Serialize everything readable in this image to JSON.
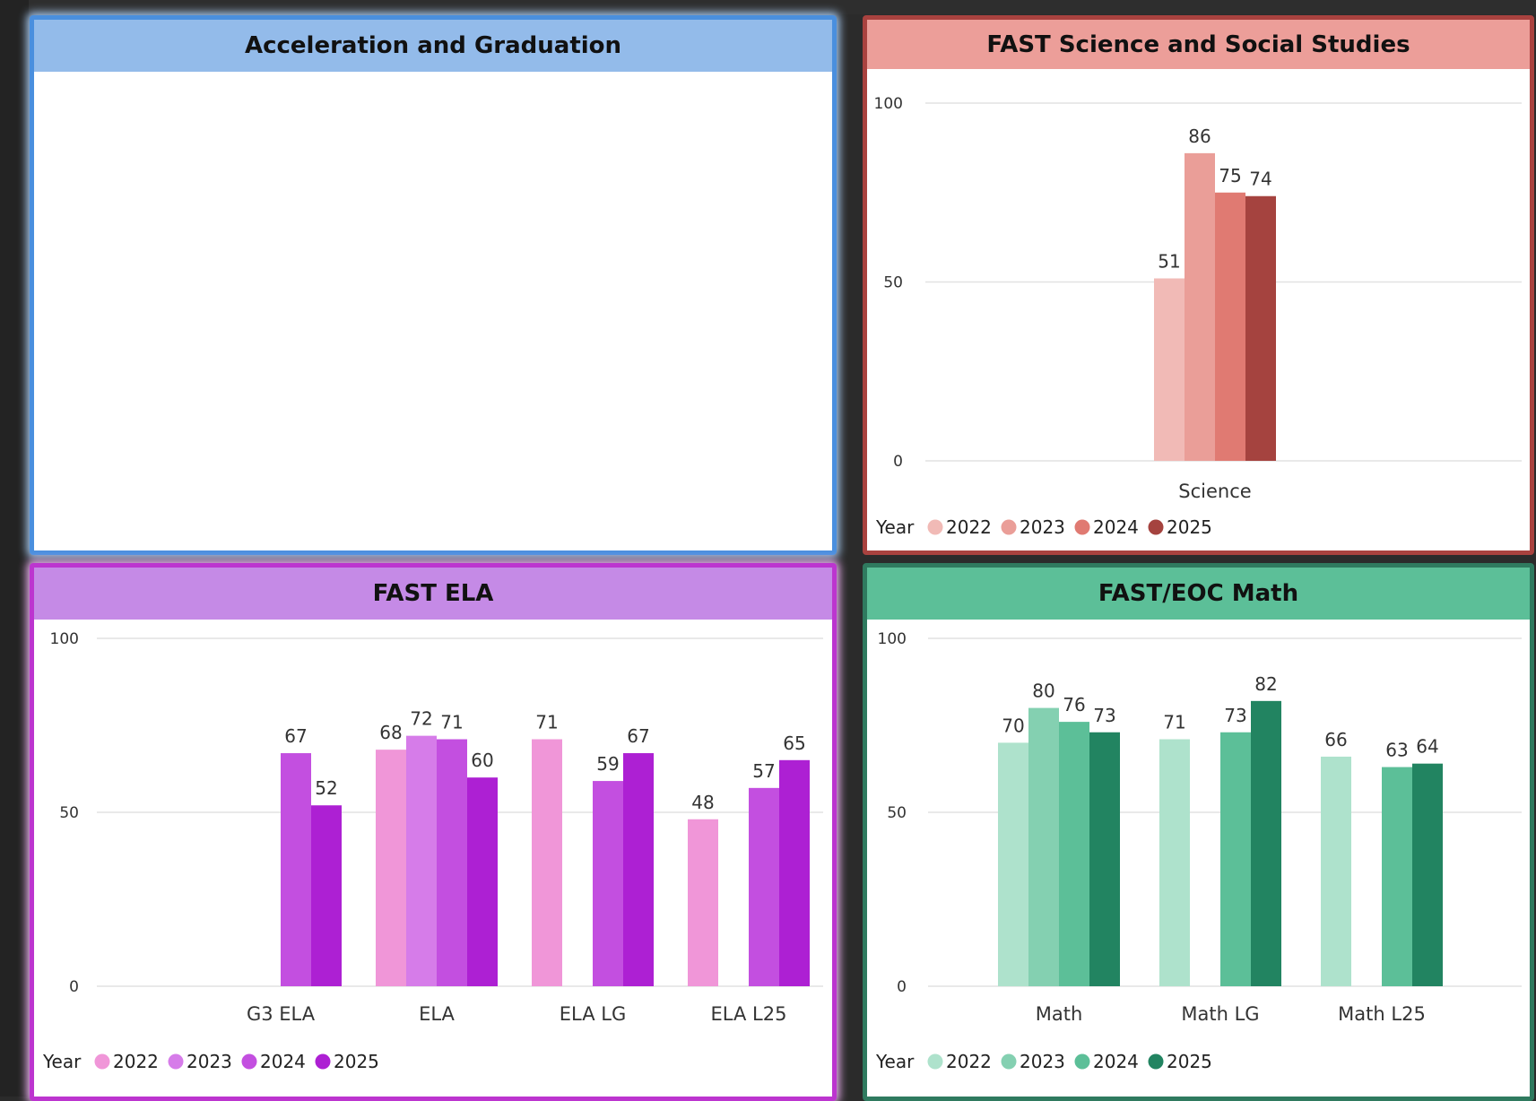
{
  "panels": {
    "accel": {
      "title": "Acceleration and Graduation"
    },
    "science": {
      "title": "FAST Science and Social Studies"
    },
    "ela": {
      "title": "FAST ELA"
    },
    "math": {
      "title": "FAST/EOC Math"
    }
  },
  "chart_data": [
    {
      "id": "science",
      "type": "bar",
      "categories": [
        "Science"
      ],
      "legend_title": "Year",
      "legend_position": "bottom-left",
      "ylim": [
        0,
        100
      ],
      "yticks": [
        0,
        50,
        100
      ],
      "grid": true,
      "series": [
        {
          "name": "2022",
          "color": "#f1bab6",
          "values": [
            51
          ]
        },
        {
          "name": "2023",
          "color": "#ea9e98",
          "values": [
            86
          ]
        },
        {
          "name": "2024",
          "color": "#e07a72",
          "values": [
            75
          ]
        },
        {
          "name": "2025",
          "color": "#a5433f",
          "values": [
            74
          ]
        }
      ]
    },
    {
      "id": "ela",
      "type": "bar",
      "categories": [
        "G3 ELA",
        "ELA",
        "ELA LG",
        "ELA L25"
      ],
      "legend_title": "Year",
      "legend_position": "bottom-left",
      "ylim": [
        0,
        100
      ],
      "yticks": [
        0,
        50,
        100
      ],
      "grid": true,
      "series": [
        {
          "name": "2022",
          "color": "#f096d8",
          "values": [
            null,
            68,
            71,
            48
          ]
        },
        {
          "name": "2023",
          "color": "#d67ce9",
          "values": [
            null,
            72,
            null,
            null
          ]
        },
        {
          "name": "2024",
          "color": "#c34fe0",
          "values": [
            67,
            71,
            59,
            57
          ]
        },
        {
          "name": "2025",
          "color": "#ad20d3",
          "values": [
            52,
            60,
            67,
            65
          ]
        }
      ]
    },
    {
      "id": "math",
      "type": "bar",
      "categories": [
        "Math",
        "Math LG",
        "Math L25"
      ],
      "legend_title": "Year",
      "legend_position": "bottom-left",
      "ylim": [
        0,
        100
      ],
      "yticks": [
        0,
        50,
        100
      ],
      "grid": true,
      "series": [
        {
          "name": "2022",
          "color": "#aee2cc",
          "values": [
            70,
            71,
            66
          ]
        },
        {
          "name": "2023",
          "color": "#84d0b1",
          "values": [
            80,
            null,
            null
          ]
        },
        {
          "name": "2024",
          "color": "#5cbf98",
          "values": [
            76,
            73,
            63
          ]
        },
        {
          "name": "2025",
          "color": "#228461",
          "values": [
            73,
            82,
            64
          ]
        }
      ]
    }
  ]
}
